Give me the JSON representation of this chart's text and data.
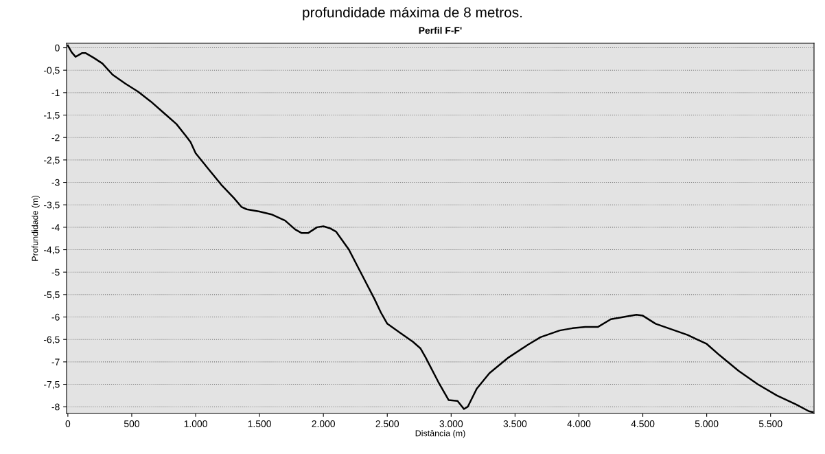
{
  "chart_data": {
    "type": "line",
    "title": "Perfil F-F'",
    "xlabel": "Distância (m)",
    "ylabel": "Profundidade (m)",
    "annotations": [
      "profundidade máxima de 8 metros."
    ],
    "x": [
      0,
      30,
      60,
      80,
      110,
      140,
      200,
      270,
      350,
      450,
      550,
      650,
      750,
      850,
      920,
      960,
      1000,
      1100,
      1200,
      1300,
      1360,
      1400,
      1500,
      1600,
      1700,
      1780,
      1830,
      1880,
      1950,
      2000,
      2050,
      2100,
      2200,
      2300,
      2400,
      2450,
      2500,
      2600,
      2700,
      2760,
      2800,
      2900,
      2980,
      3050,
      3100,
      3130,
      3200,
      3300,
      3450,
      3600,
      3700,
      3850,
      3950,
      4050,
      4150,
      4250,
      4350,
      4450,
      4500,
      4600,
      4700,
      4850,
      5000,
      5100,
      5250,
      5400,
      5550,
      5700,
      5800,
      5830
    ],
    "series": [
      {
        "color": "#000000",
        "values": [
          0.05,
          -0.1,
          -0.2,
          -0.17,
          -0.12,
          -0.12,
          -0.22,
          -0.35,
          -0.6,
          -0.8,
          -0.98,
          -1.2,
          -1.45,
          -1.7,
          -1.95,
          -2.1,
          -2.35,
          -2.7,
          -3.05,
          -3.35,
          -3.55,
          -3.6,
          -3.65,
          -3.72,
          -3.85,
          -4.05,
          -4.13,
          -4.13,
          -4.0,
          -3.98,
          -4.02,
          -4.1,
          -4.5,
          -5.05,
          -5.6,
          -5.9,
          -6.15,
          -6.35,
          -6.55,
          -6.7,
          -6.9,
          -7.45,
          -7.85,
          -7.87,
          -8.05,
          -8.0,
          -7.6,
          -7.25,
          -6.9,
          -6.62,
          -6.45,
          -6.3,
          -6.25,
          -6.22,
          -6.22,
          -6.05,
          -6.0,
          -5.95,
          -5.97,
          -6.15,
          -6.25,
          -6.4,
          -6.6,
          -6.85,
          -7.2,
          -7.5,
          -7.75,
          -7.95,
          -8.1,
          -8.12
        ]
      }
    ],
    "xlim": [
      -10,
      5840
    ],
    "ylim": [
      -8.15,
      0.1
    ],
    "xticks": [
      0,
      500,
      {
        "value": 1000,
        "label": "1.000"
      },
      {
        "value": 1500,
        "label": "1.500"
      },
      {
        "value": 2000,
        "label": "2.000"
      },
      {
        "value": 2500,
        "label": "2.500"
      },
      {
        "value": 3000,
        "label": "3.000"
      },
      {
        "value": 3500,
        "label": "3.500"
      },
      {
        "value": 4000,
        "label": "4.000"
      },
      {
        "value": 4500,
        "label": "4.500"
      },
      {
        "value": 5000,
        "label": "5.000"
      },
      {
        "value": 5500,
        "label": "5.500"
      }
    ],
    "yticks": [
      0,
      {
        "value": -0.5,
        "label": "-0,5"
      },
      -1,
      {
        "value": -1.5,
        "label": "-1,5"
      },
      -2,
      {
        "value": -2.5,
        "label": "-2,5"
      },
      -3,
      {
        "value": -3.5,
        "label": "-3,5"
      },
      -4,
      {
        "value": -4.5,
        "label": "-4,5"
      },
      -5,
      {
        "value": -5.5,
        "label": "-5,5"
      },
      -6,
      {
        "value": -6.5,
        "label": "-6,5"
      },
      -7,
      {
        "value": -7.5,
        "label": "-7,5"
      },
      -8
    ],
    "grid": "y",
    "line_style": "solid",
    "marker": "none"
  }
}
